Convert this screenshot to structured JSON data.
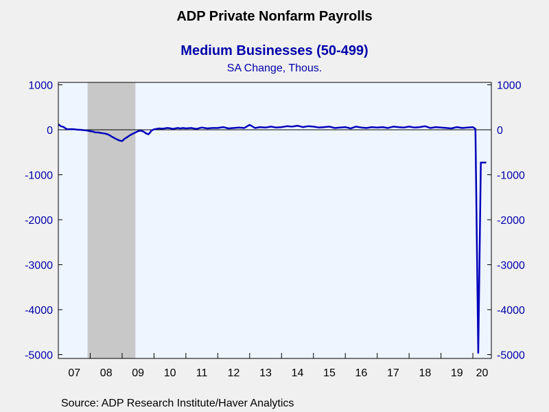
{
  "chart_data": {
    "type": "line",
    "title": "ADP Private Nonfarm Payrolls",
    "subtitle": "Medium Businesses (50-499)",
    "subtitle2": "SA Change, Thous.",
    "source": "Source:  ADP Research Institute/Haver Analytics",
    "x_tick_labels": [
      "07",
      "08",
      "09",
      "10",
      "11",
      "12",
      "13",
      "14",
      "15",
      "16",
      "17",
      "18",
      "19",
      "20"
    ],
    "y_tick_labels": [
      "1000",
      "0",
      "-1000",
      "-2000",
      "-3000",
      "-4000",
      "-5000"
    ],
    "y_ticks": [
      1000,
      0,
      -1000,
      -2000,
      -3000,
      -4000,
      -5000
    ],
    "ylim": [
      -5100,
      1000
    ],
    "xlim": [
      2007.0,
      2020.58
    ],
    "recession": [
      2007.917,
      2009.417
    ],
    "grid": false,
    "colors": {
      "line": "#0000bb",
      "axis_text": "#0000aa",
      "plot_bg": "#eef5ff",
      "recession": "#c8c8c8"
    },
    "series": [
      {
        "x": [
          2007.0,
          2007.08,
          2007.17,
          2007.25,
          2007.33,
          2007.42,
          2007.5,
          2007.58,
          2007.67,
          2007.75,
          2007.83,
          2007.92,
          2008.0,
          2008.08,
          2008.17,
          2008.25,
          2008.33,
          2008.42,
          2008.5,
          2008.58,
          2008.67,
          2008.75,
          2008.83,
          2008.92,
          2009.0,
          2009.08,
          2009.17,
          2009.25,
          2009.33,
          2009.42,
          2009.5,
          2009.58,
          2009.67,
          2009.75,
          2009.83,
          2009.92,
          2010.0,
          2010.08,
          2010.17,
          2010.25,
          2010.33,
          2010.42,
          2010.5,
          2010.58,
          2010.67,
          2010.75,
          2010.83,
          2010.92,
          2011.0,
          2011.17,
          2011.33,
          2011.5,
          2011.67,
          2011.83,
          2012.0,
          2012.17,
          2012.33,
          2012.5,
          2012.67,
          2012.83,
          2013.0,
          2013.17,
          2013.33,
          2013.5,
          2013.67,
          2013.83,
          2014.0,
          2014.17,
          2014.33,
          2014.5,
          2014.67,
          2014.83,
          2015.0,
          2015.17,
          2015.33,
          2015.5,
          2015.67,
          2015.83,
          2016.0,
          2016.17,
          2016.33,
          2016.5,
          2016.67,
          2016.83,
          2017.0,
          2017.17,
          2017.33,
          2017.5,
          2017.67,
          2017.83,
          2018.0,
          2018.17,
          2018.33,
          2018.5,
          2018.67,
          2018.83,
          2019.0,
          2019.17,
          2019.33,
          2019.5,
          2019.67,
          2019.83,
          2020.0,
          2020.08,
          2020.17,
          2020.25,
          2020.33,
          2020.42
        ],
        "y": [
          120,
          80,
          60,
          20,
          10,
          15,
          10,
          5,
          0,
          -5,
          -10,
          -20,
          -30,
          -40,
          -60,
          -60,
          -70,
          -80,
          -90,
          -110,
          -150,
          -180,
          -210,
          -240,
          -250,
          -200,
          -160,
          -120,
          -90,
          -60,
          -30,
          -20,
          -40,
          -80,
          -100,
          -20,
          10,
          20,
          30,
          25,
          30,
          40,
          35,
          20,
          30,
          40,
          30,
          40,
          30,
          40,
          20,
          50,
          30,
          40,
          40,
          60,
          30,
          40,
          50,
          40,
          110,
          40,
          60,
          50,
          70,
          50,
          60,
          80,
          70,
          90,
          60,
          80,
          70,
          50,
          60,
          70,
          40,
          50,
          60,
          30,
          70,
          50,
          40,
          60,
          50,
          60,
          40,
          70,
          60,
          50,
          70,
          50,
          60,
          80,
          40,
          60,
          50,
          40,
          30,
          60,
          40,
          50,
          60,
          20,
          -4960,
          -730,
          -730,
          -730
        ]
      }
    ]
  }
}
